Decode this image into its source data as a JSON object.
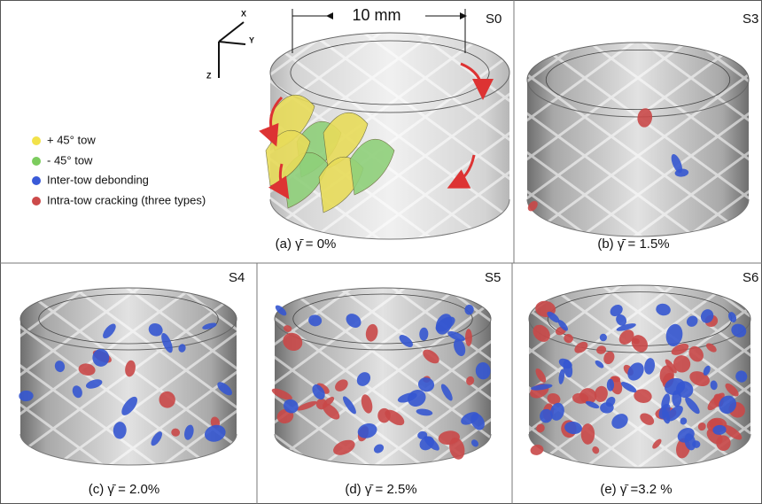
{
  "scale_bar": "10 mm",
  "axes": {
    "x": "X",
    "y": "Y",
    "z": "Z"
  },
  "legend": [
    "+ 45° tow",
    "- 45° tow",
    "Inter-tow debonding",
    "Intra-tow cracking (three types)"
  ],
  "panels": [
    {
      "tag": "S0",
      "caption": "(a) γ̄ = 0%"
    },
    {
      "tag": "S3",
      "caption": "(b)  γ̄ = 1.5%"
    },
    {
      "tag": "S4",
      "caption": "(c) γ̄ = 2.0%"
    },
    {
      "tag": "S5",
      "caption": "(d) γ̄ = 2.5%"
    },
    {
      "tag": "S6",
      "caption": "(e) γ̄ =3.2 %"
    }
  ]
}
